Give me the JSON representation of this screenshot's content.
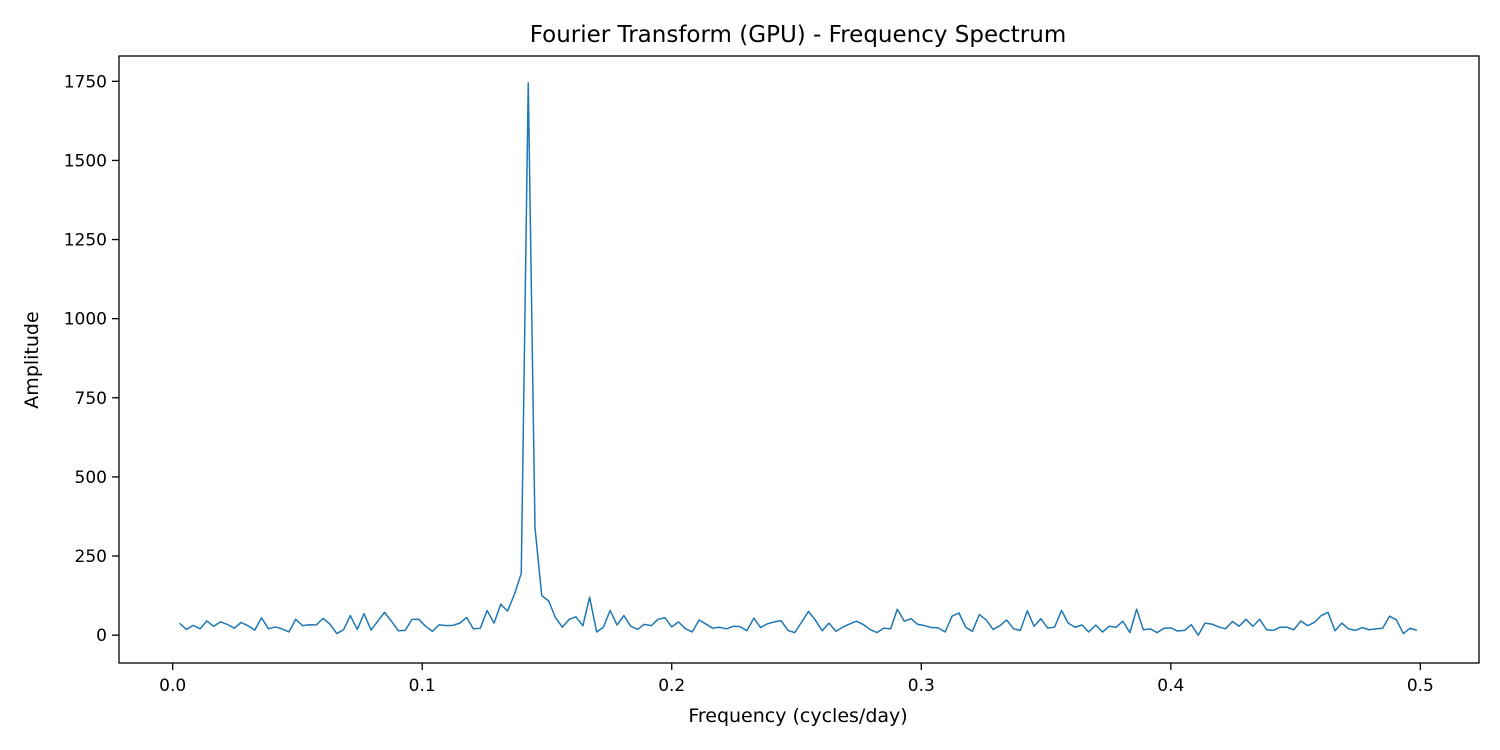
{
  "chart_data": {
    "type": "line",
    "title": "Fourier Transform (GPU) - Frequency Spectrum",
    "xlabel": "Frequency (cycles/day)",
    "ylabel": "Amplitude",
    "xlim": [
      -0.0215,
      0.5235
    ],
    "ylim": [
      -88,
      1830
    ],
    "xticks": [
      0.0,
      0.1,
      0.2,
      0.3,
      0.4,
      0.5
    ],
    "xtick_labels": [
      "0.0",
      "0.1",
      "0.2",
      "0.3",
      "0.4",
      "0.5"
    ],
    "yticks": [
      0,
      250,
      500,
      750,
      1000,
      1250,
      1500,
      1750
    ],
    "ytick_labels": [
      "0",
      "250",
      "500",
      "750",
      "1000",
      "1250",
      "1500",
      "1750"
    ],
    "grid": false,
    "series": [
      {
        "color": "#1f77b4",
        "x": [
          0.0027,
          0.0055,
          0.0082,
          0.011,
          0.0137,
          0.0164,
          0.0192,
          0.0219,
          0.0247,
          0.0274,
          0.0301,
          0.0329,
          0.0356,
          0.0384,
          0.0411,
          0.0438,
          0.0466,
          0.0493,
          0.0521,
          0.0548,
          0.0575,
          0.0603,
          0.063,
          0.0658,
          0.0685,
          0.0712,
          0.074,
          0.0767,
          0.0795,
          0.0822,
          0.0849,
          0.0877,
          0.0904,
          0.0932,
          0.0959,
          0.0986,
          0.1014,
          0.1041,
          0.1068,
          0.1096,
          0.1123,
          0.1151,
          0.1178,
          0.1205,
          0.1233,
          0.126,
          0.1288,
          0.1315,
          0.1342,
          0.137,
          0.1397,
          0.1425,
          0.1452,
          0.1479,
          0.1507,
          0.1534,
          0.1562,
          0.1589,
          0.1616,
          0.1644,
          0.1671,
          0.1699,
          0.1726,
          0.1753,
          0.1781,
          0.1808,
          0.1836,
          0.1863,
          0.189,
          0.1918,
          0.1945,
          0.1973,
          0.2,
          0.2027,
          0.2055,
          0.2082,
          0.211,
          0.2137,
          0.2164,
          0.2192,
          0.2219,
          0.2247,
          0.2274,
          0.2301,
          0.2329,
          0.2356,
          0.2384,
          0.2411,
          0.2438,
          0.2466,
          0.2493,
          0.2521,
          0.2548,
          0.2575,
          0.2603,
          0.263,
          0.2658,
          0.2685,
          0.2712,
          0.274,
          0.2767,
          0.2795,
          0.2822,
          0.2849,
          0.2877,
          0.2904,
          0.2932,
          0.2959,
          0.2986,
          0.3014,
          0.3041,
          0.3068,
          0.3096,
          0.3123,
          0.3151,
          0.3178,
          0.3205,
          0.3233,
          0.326,
          0.3288,
          0.3315,
          0.3342,
          0.337,
          0.3397,
          0.3425,
          0.3452,
          0.3479,
          0.3507,
          0.3534,
          0.3562,
          0.3589,
          0.3616,
          0.3644,
          0.3671,
          0.3699,
          0.3726,
          0.3753,
          0.3781,
          0.3808,
          0.3836,
          0.3863,
          0.389,
          0.3918,
          0.3945,
          0.3973,
          0.4,
          0.4027,
          0.4055,
          0.4082,
          0.411,
          0.4137,
          0.4164,
          0.4192,
          0.4219,
          0.4247,
          0.4274,
          0.4301,
          0.4329,
          0.4356,
          0.4384,
          0.4411,
          0.4438,
          0.4466,
          0.4493,
          0.4521,
          0.4548,
          0.4575,
          0.4603,
          0.463,
          0.4658,
          0.4685,
          0.4712,
          0.474,
          0.4767,
          0.4795,
          0.4822,
          0.4849,
          0.4877,
          0.4904,
          0.4932,
          0.4959,
          0.4986
        ],
        "y": [
          38,
          18,
          31,
          20,
          45,
          28,
          42,
          34,
          22,
          40,
          30,
          16,
          55,
          20,
          26,
          20,
          10,
          50,
          30,
          33,
          32,
          53,
          35,
          5,
          17,
          62,
          18,
          68,
          16,
          44,
          72,
          44,
          14,
          15,
          50,
          50,
          28,
          12,
          33,
          30,
          31,
          38,
          56,
          20,
          22,
          78,
          38,
          98,
          76,
          130,
          195,
          1745,
          340,
          125,
          108,
          55,
          25,
          50,
          58,
          30,
          120,
          10,
          25,
          78,
          32,
          62,
          28,
          18,
          34,
          30,
          50,
          55,
          26,
          42,
          20,
          10,
          48,
          35,
          22,
          25,
          20,
          28,
          27,
          14,
          54,
          24,
          36,
          42,
          46,
          15,
          8,
          42,
          75,
          48,
          14,
          38,
          12,
          25,
          35,
          44,
          34,
          18,
          8,
          22,
          20,
          82,
          44,
          52,
          34,
          30,
          24,
          23,
          10,
          60,
          70,
          25,
          12,
          65,
          48,
          18,
          30,
          48,
          20,
          15,
          77,
          28,
          52,
          22,
          25,
          78,
          38,
          25,
          32,
          10,
          32,
          10,
          28,
          25,
          44,
          8,
          82,
          17,
          20,
          8,
          22,
          23,
          13,
          15,
          33,
          0,
          38,
          35,
          26,
          20,
          43,
          28,
          50,
          28,
          50,
          17,
          15,
          25,
          25,
          17,
          45,
          30,
          40,
          62,
          72,
          14,
          38,
          20,
          15,
          24,
          17,
          20,
          22,
          60,
          48,
          5,
          22,
          15
        ]
      }
    ]
  }
}
